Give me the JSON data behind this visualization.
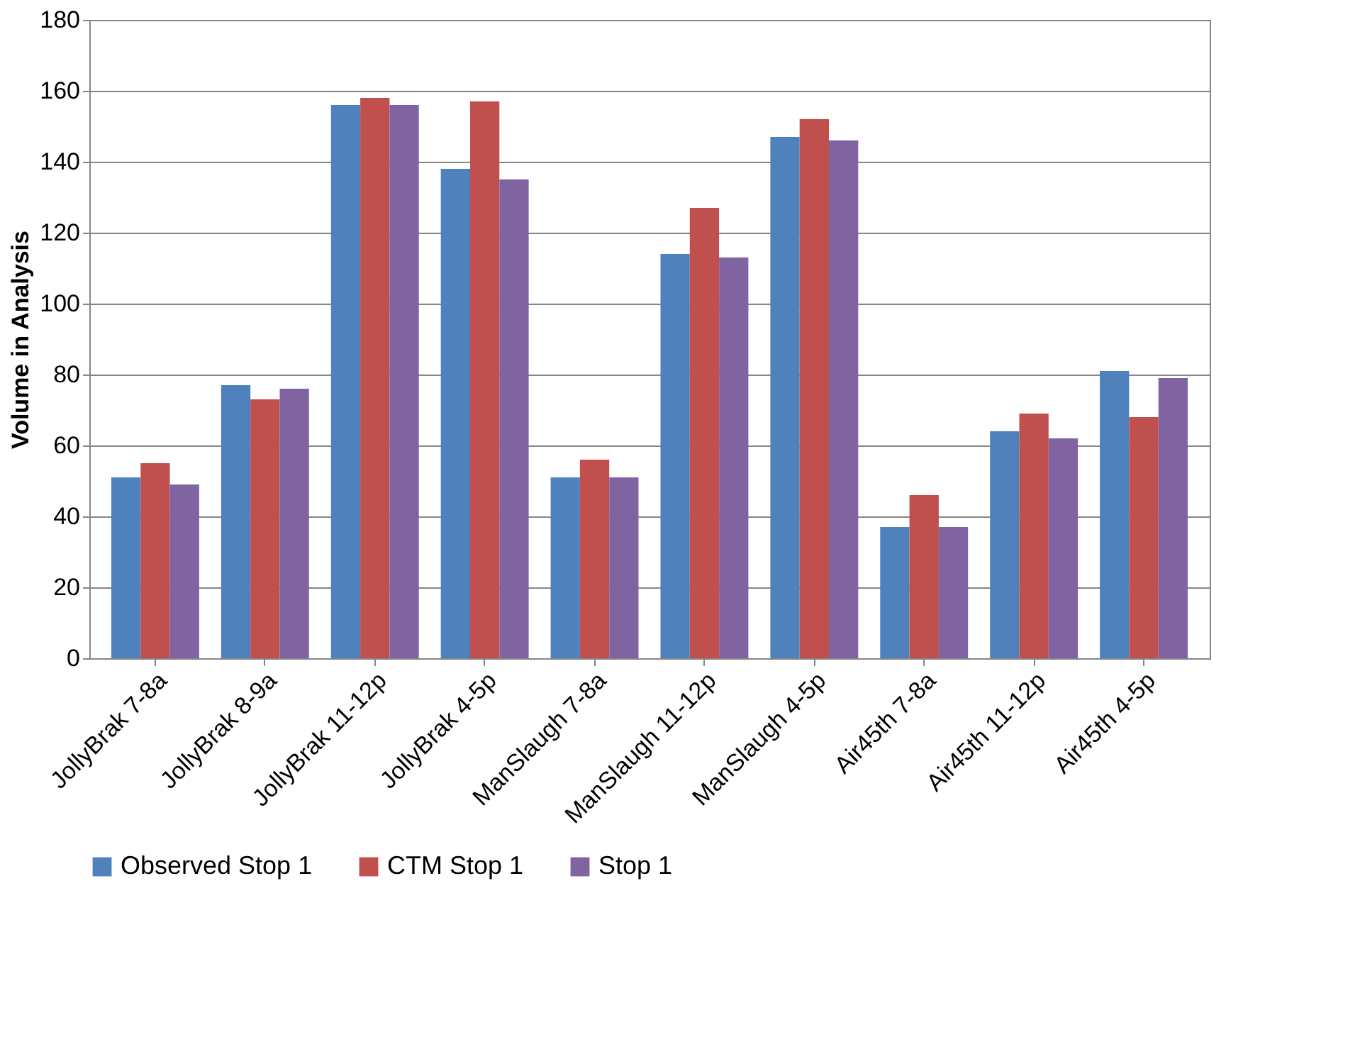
{
  "chart_data": {
    "type": "bar",
    "ylabel": "Volume in Analysis",
    "categories": [
      "JollyBrak 7-8a",
      "JollyBrak 8-9a",
      "JollyBrak 11-12p",
      "JollyBrak 4-5p",
      "ManSlaugh 7-8a",
      "ManSlaugh 11-12p",
      "ManSlaugh 4-5p",
      "Air45th 7-8a",
      "Air45th 11-12p",
      "Air45th 4-5p"
    ],
    "series": [
      {
        "name": "Observed Stop 1",
        "color": "#4f81bd",
        "values": [
          51,
          77,
          156,
          138,
          51,
          114,
          147,
          37,
          64,
          81
        ]
      },
      {
        "name": "CTM Stop 1",
        "color": "#c0504d",
        "values": [
          55,
          73,
          158,
          157,
          56,
          127,
          152,
          46,
          69,
          68
        ]
      },
      {
        "name": "Stop 1",
        "color": "#8064a2",
        "values": [
          49,
          76,
          156,
          135,
          51,
          113,
          146,
          37,
          62,
          79
        ]
      }
    ],
    "ylim": [
      0,
      180
    ],
    "yticks": [
      0,
      20,
      40,
      60,
      80,
      100,
      120,
      140,
      160,
      180
    ],
    "grid": "y",
    "legend": "bottom"
  }
}
